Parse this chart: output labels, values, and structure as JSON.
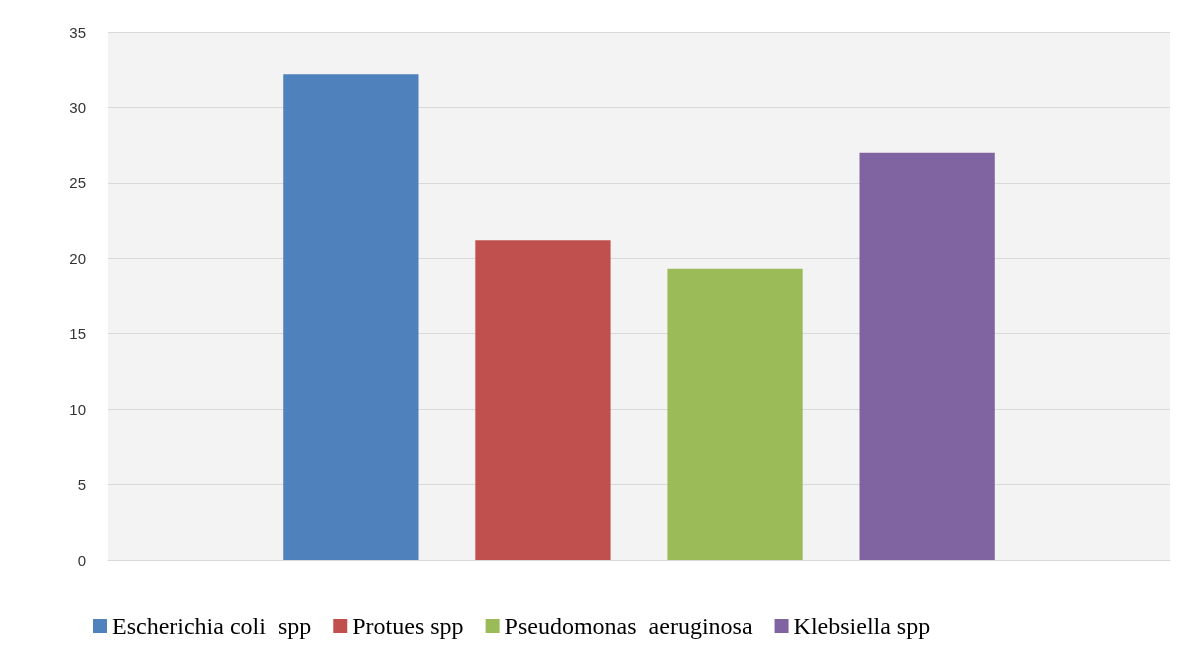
{
  "chart_data": {
    "type": "bar",
    "categories": [
      null
    ],
    "series": [
      {
        "name": "Escherichia coli  spp",
        "color": "#4f81bd",
        "values": [
          32.2
        ]
      },
      {
        "name": "Protues spp",
        "color": "#c0504d",
        "values": [
          21.2
        ]
      },
      {
        "name": "Pseudomonas  aeruginosa",
        "color": "#9bbb59",
        "values": [
          19.3
        ]
      },
      {
        "name": "Klebsiella spp",
        "color": "#8064a2",
        "values": [
          27.0
        ]
      }
    ],
    "ylim": [
      0,
      35
    ],
    "yticks": [
      0,
      5,
      10,
      15,
      20,
      25,
      30,
      35
    ],
    "grid": "y",
    "legend": "bottom"
  }
}
